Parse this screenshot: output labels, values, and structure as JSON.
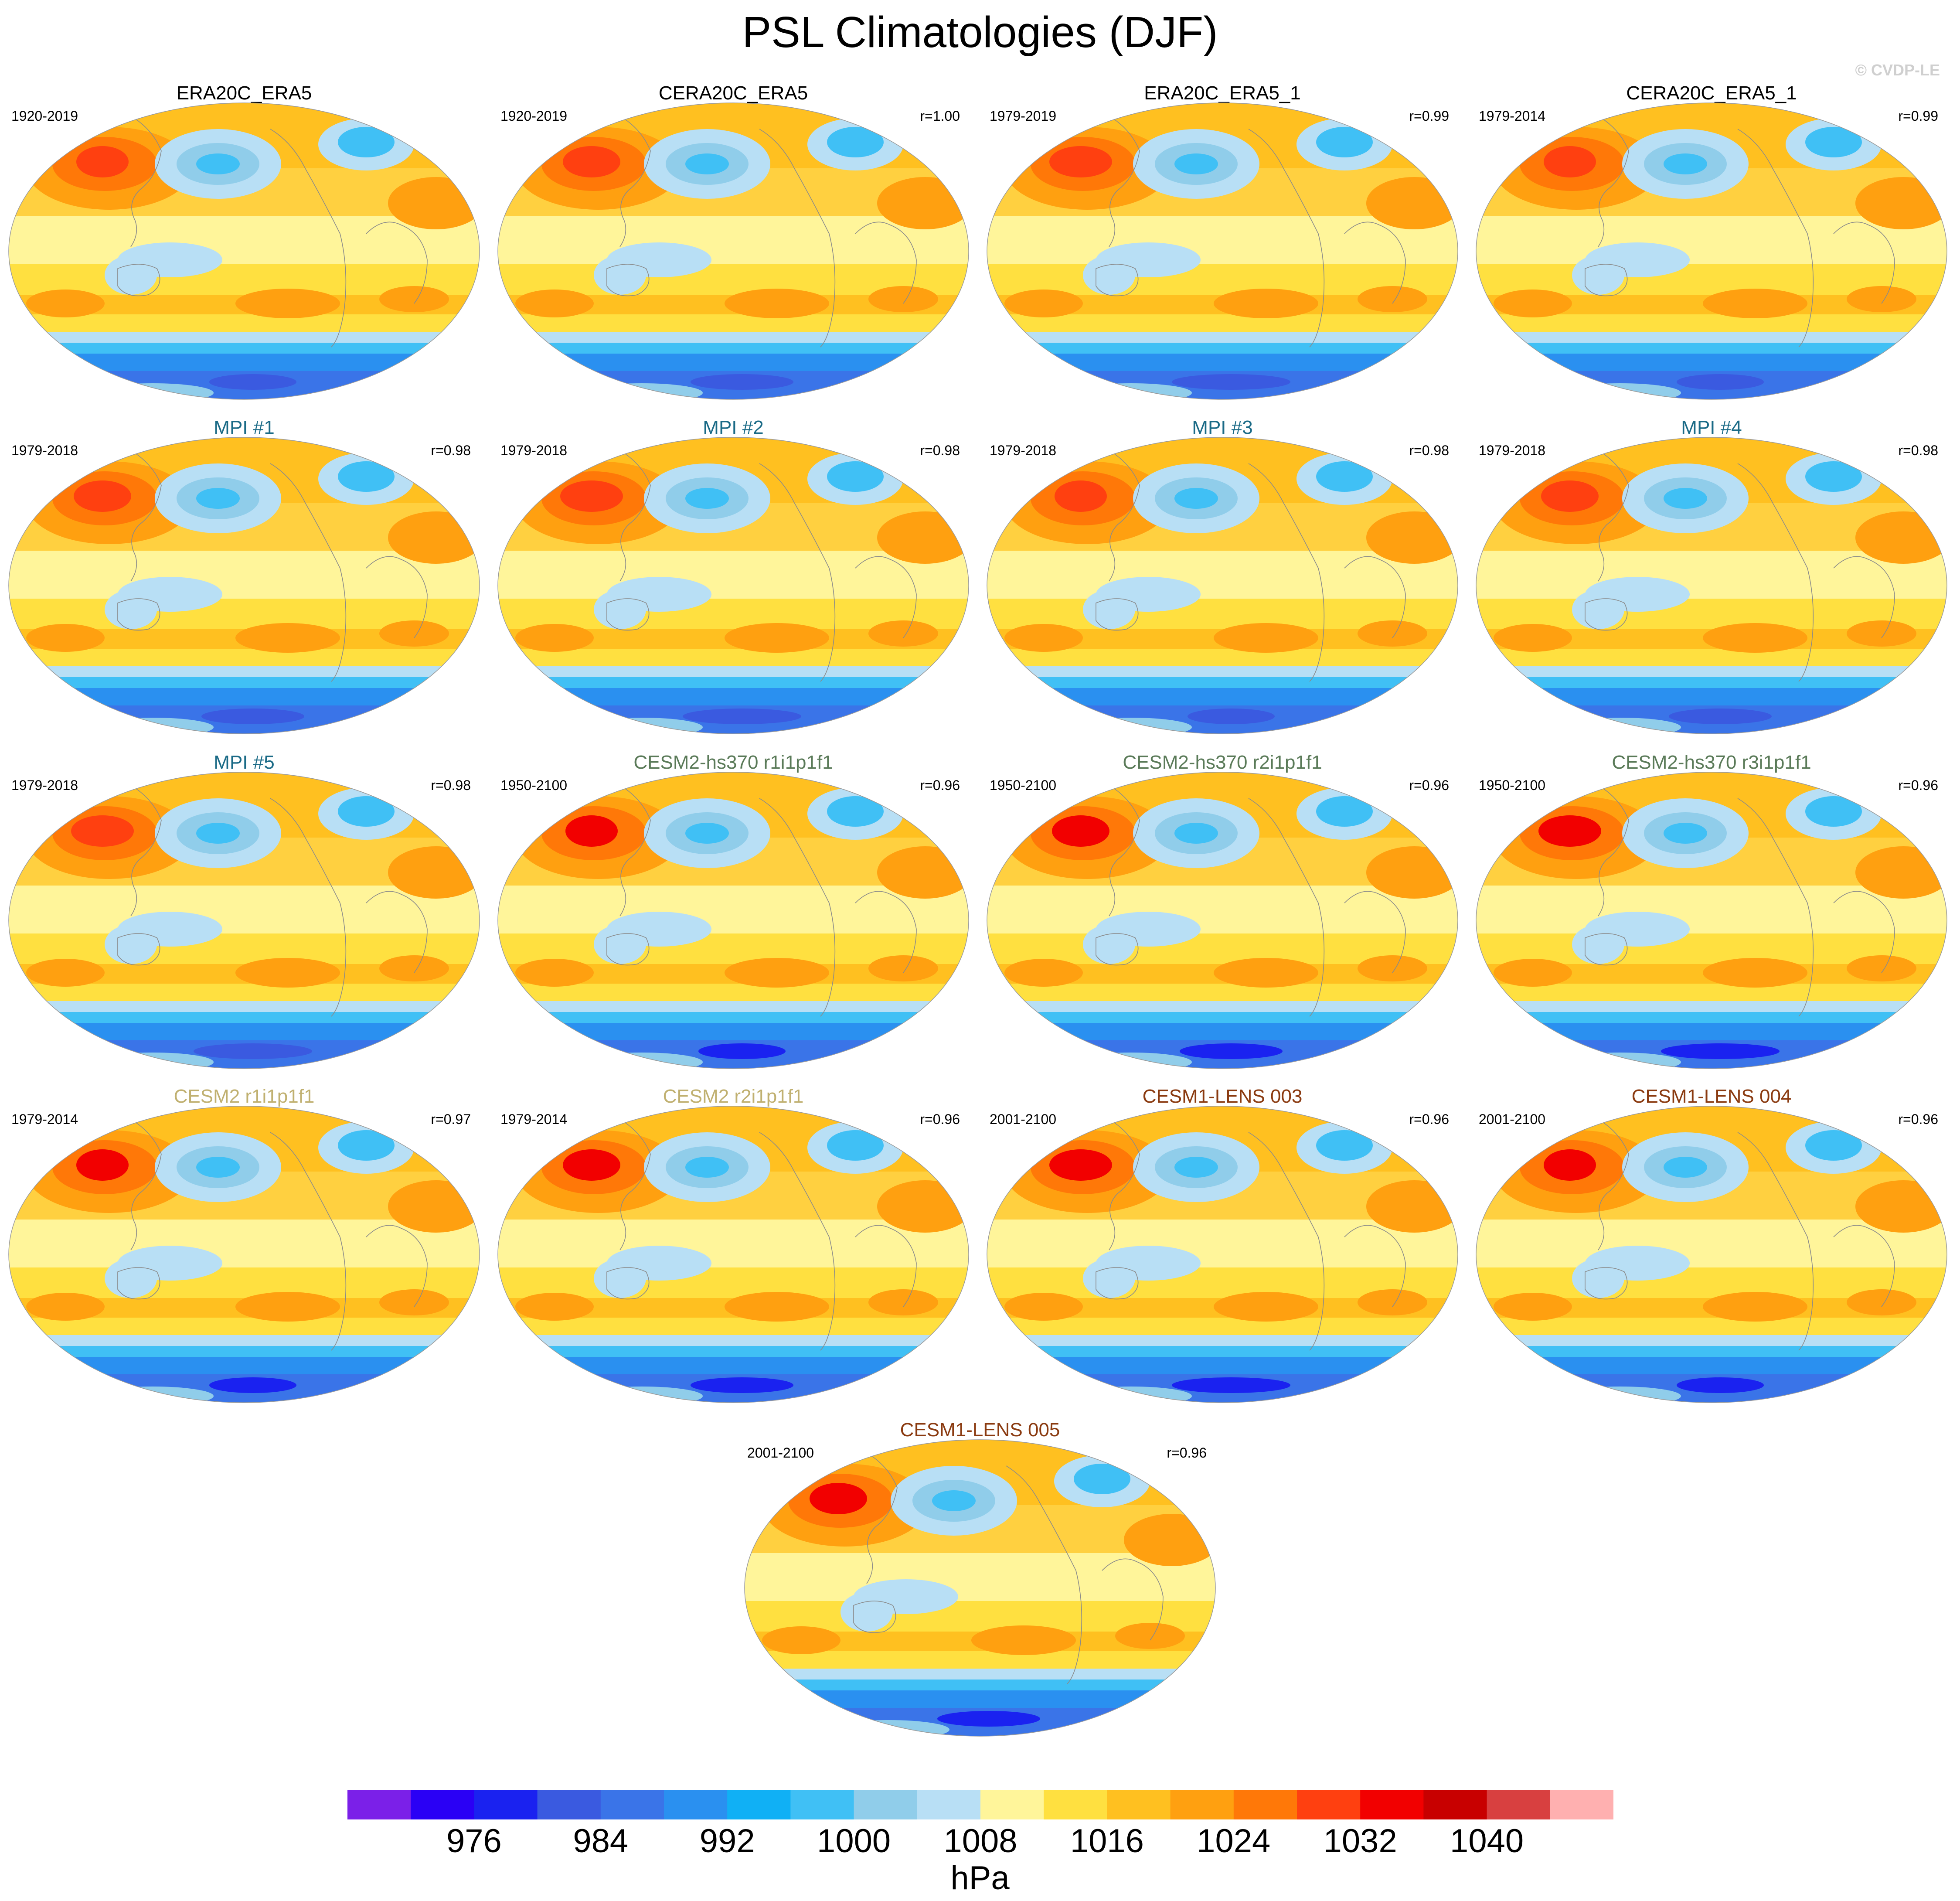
{
  "title": "PSL Climatologies (DJF)",
  "watermark": "© CVDP-LE",
  "colorbar": {
    "units": "hPa",
    "labels": [
      "976",
      "984",
      "992",
      "1000",
      "1008",
      "1016",
      "1024",
      "1032",
      "1040"
    ],
    "colors": [
      "#7b20e8",
      "#2a00f5",
      "#1a22f0",
      "#3a5ae0",
      "#3a74e8",
      "#2a90f0",
      "#10b0f5",
      "#40c0f5",
      "#90cdea",
      "#b8dff5",
      "#fff59a",
      "#ffe040",
      "#ffc020",
      "#ffa010",
      "#ff7808",
      "#ff4010",
      "#f20000",
      "#c80000",
      "#d84040",
      "#ffb0b0"
    ],
    "edges": [
      968,
      972,
      976,
      980,
      984,
      988,
      992,
      996,
      1000,
      1004,
      1008,
      1012,
      1016,
      1020,
      1024,
      1028,
      1032,
      1036,
      1040,
      1044,
      1048
    ]
  },
  "chart_data": [
    {
      "type": "heatmap",
      "title": "ERA20C_ERA5",
      "years": "1920-2019",
      "correlation": "",
      "title_color": "#000000"
    },
    {
      "type": "heatmap",
      "title": "CERA20C_ERA5",
      "years": "1920-2019",
      "correlation": "r=1.00",
      "title_color": "#000000"
    },
    {
      "type": "heatmap",
      "title": "ERA20C_ERA5_1",
      "years": "1979-2019",
      "correlation": "r=0.99",
      "title_color": "#000000"
    },
    {
      "type": "heatmap",
      "title": "CERA20C_ERA5_1",
      "years": "1979-2014",
      "correlation": "r=0.99",
      "title_color": "#000000"
    },
    {
      "type": "heatmap",
      "title": "MPI #1",
      "years": "1979-2018",
      "correlation": "r=0.98",
      "title_color": "#1a6a86"
    },
    {
      "type": "heatmap",
      "title": "MPI #2",
      "years": "1979-2018",
      "correlation": "r=0.98",
      "title_color": "#1a6a86"
    },
    {
      "type": "heatmap",
      "title": "MPI #3",
      "years": "1979-2018",
      "correlation": "r=0.98",
      "title_color": "#1a6a86"
    },
    {
      "type": "heatmap",
      "title": "MPI #4",
      "years": "1979-2018",
      "correlation": "r=0.98",
      "title_color": "#1a6a86"
    },
    {
      "type": "heatmap",
      "title": "MPI #5",
      "years": "1979-2018",
      "correlation": "r=0.98",
      "title_color": "#1a6a86"
    },
    {
      "type": "heatmap",
      "title": "CESM2-hs370 r1i1p1f1",
      "years": "1950-2100",
      "correlation": "r=0.96",
      "title_color": "#5a7a58"
    },
    {
      "type": "heatmap",
      "title": "CESM2-hs370 r2i1p1f1",
      "years": "1950-2100",
      "correlation": "r=0.96",
      "title_color": "#5a7a58"
    },
    {
      "type": "heatmap",
      "title": "CESM2-hs370 r3i1p1f1",
      "years": "1950-2100",
      "correlation": "r=0.96",
      "title_color": "#5a7a58"
    },
    {
      "type": "heatmap",
      "title": "CESM2 r1i1p1f1",
      "years": "1979-2014",
      "correlation": "r=0.97",
      "title_color": "#c0b070"
    },
    {
      "type": "heatmap",
      "title": "CESM2 r2i1p1f1",
      "years": "1979-2014",
      "correlation": "r=0.96",
      "title_color": "#c0b070"
    },
    {
      "type": "heatmap",
      "title": "CESM1-LENS 003",
      "years": "2001-2100",
      "correlation": "r=0.96",
      "title_color": "#8a3a10"
    },
    {
      "type": "heatmap",
      "title": "CESM1-LENS 004",
      "years": "2001-2100",
      "correlation": "r=0.96",
      "title_color": "#8a3a10"
    },
    {
      "type": "heatmap",
      "title": "CESM1-LENS 005",
      "years": "2001-2100",
      "correlation": "r=0.96",
      "title_color": "#8a3a10"
    }
  ]
}
